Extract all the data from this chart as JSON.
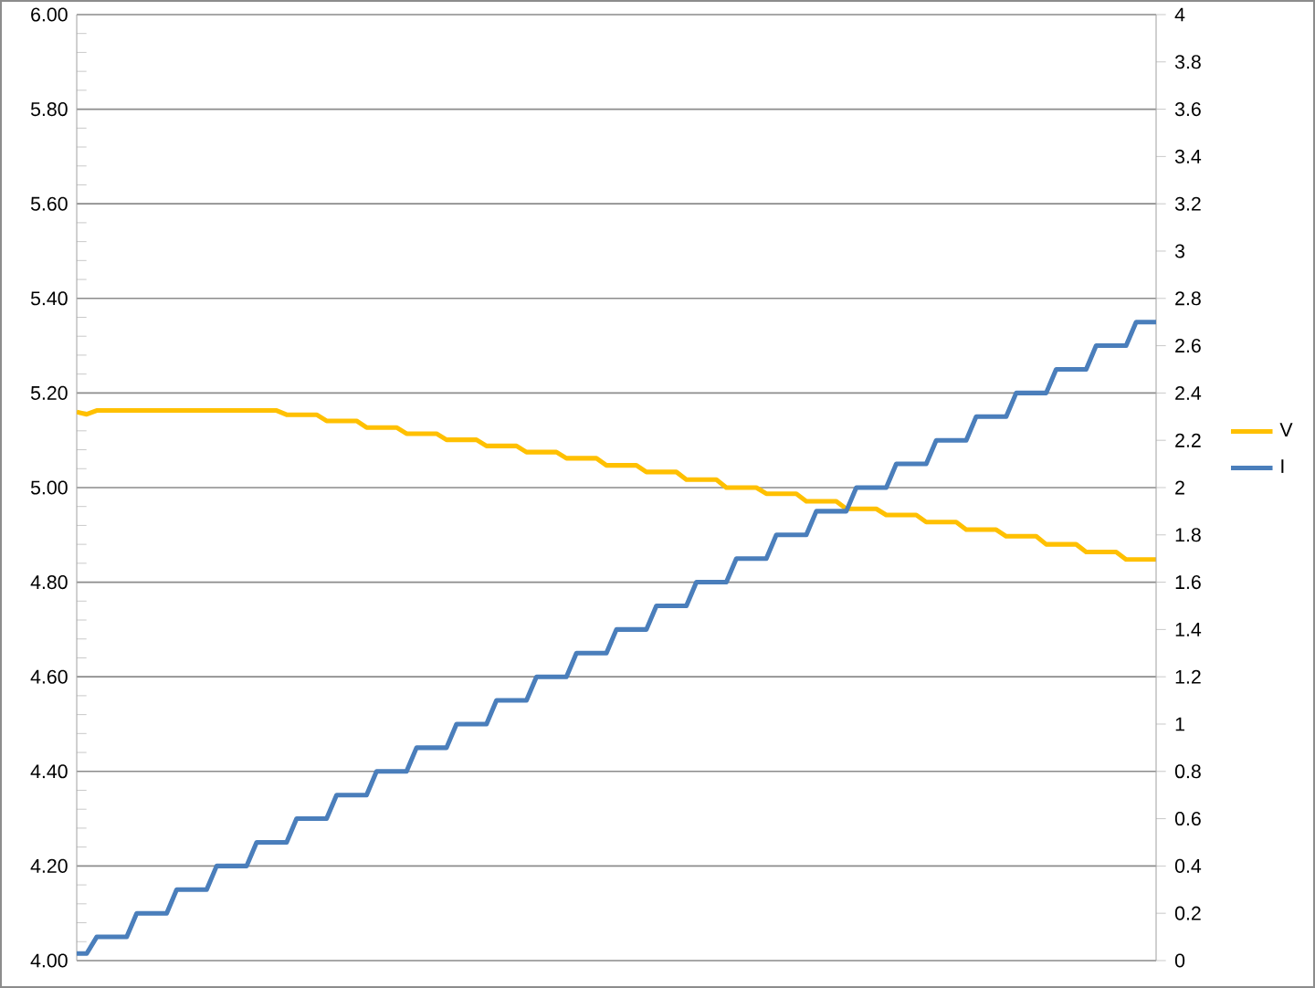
{
  "chart_data": {
    "type": "line",
    "categories": [
      null,
      null,
      null,
      null,
      null,
      null,
      null,
      null,
      null,
      null,
      null,
      null,
      null,
      null,
      null,
      null,
      null,
      null,
      null,
      null,
      null,
      null,
      null,
      null,
      null,
      null,
      null,
      null,
      null,
      null,
      null,
      null,
      null,
      null,
      null,
      null,
      null,
      null,
      null,
      null,
      null,
      null,
      null,
      null,
      null,
      null,
      null,
      null,
      null,
      null,
      null,
      null,
      null,
      null,
      null,
      null,
      null,
      null,
      null,
      null,
      null,
      null,
      null,
      null,
      null,
      null,
      null,
      null,
      null,
      null,
      null,
      null,
      null,
      null,
      null,
      null,
      null,
      null,
      null,
      null,
      null,
      null,
      null,
      null,
      null,
      null,
      null,
      null,
      null,
      null,
      null,
      null,
      null,
      null,
      null,
      null,
      null,
      null,
      null,
      null,
      null,
      null,
      null,
      null,
      null,
      null,
      null,
      null,
      null
    ],
    "series": [
      {
        "name": "V",
        "color": "#ffc000",
        "axis": "y",
        "values": [
          5.16,
          5.155,
          5.163,
          5.163,
          5.163,
          5.163,
          5.163,
          5.163,
          5.163,
          5.163,
          5.163,
          5.163,
          5.163,
          5.163,
          5.163,
          5.163,
          5.163,
          5.163,
          5.163,
          5.163,
          5.163,
          5.154,
          5.154,
          5.154,
          5.154,
          5.141,
          5.141,
          5.141,
          5.141,
          5.127,
          5.127,
          5.127,
          5.127,
          5.114,
          5.114,
          5.114,
          5.114,
          5.101,
          5.101,
          5.101,
          5.101,
          5.088,
          5.088,
          5.088,
          5.088,
          5.075,
          5.075,
          5.075,
          5.075,
          5.062,
          5.062,
          5.062,
          5.062,
          5.047,
          5.047,
          5.047,
          5.047,
          5.033,
          5.033,
          5.033,
          5.033,
          5.017,
          5.017,
          5.017,
          5.017,
          5.0,
          5.0,
          5.0,
          5.0,
          4.987,
          4.987,
          4.987,
          4.987,
          4.971,
          4.971,
          4.971,
          4.971,
          4.955,
          4.955,
          4.955,
          4.955,
          4.942,
          4.942,
          4.942,
          4.942,
          4.927,
          4.927,
          4.927,
          4.927,
          4.911,
          4.911,
          4.911,
          4.911,
          4.897,
          4.897,
          4.897,
          4.897,
          4.88,
          4.88,
          4.88,
          4.88,
          4.864,
          4.864,
          4.864,
          4.864,
          4.848,
          4.848,
          4.848,
          4.848
        ]
      },
      {
        "name": "I",
        "color": "#4a7ebb",
        "axis": "y2",
        "values": [
          0.03,
          0.03,
          0.1,
          0.1,
          0.1,
          0.1,
          0.2,
          0.2,
          0.2,
          0.2,
          0.3,
          0.3,
          0.3,
          0.3,
          0.4,
          0.4,
          0.4,
          0.4,
          0.5,
          0.5,
          0.5,
          0.5,
          0.6,
          0.6,
          0.6,
          0.6,
          0.7,
          0.7,
          0.7,
          0.7,
          0.8,
          0.8,
          0.8,
          0.8,
          0.9,
          0.9,
          0.9,
          0.9,
          1.0,
          1.0,
          1.0,
          1.0,
          1.1,
          1.1,
          1.1,
          1.1,
          1.2,
          1.2,
          1.2,
          1.2,
          1.3,
          1.3,
          1.3,
          1.3,
          1.4,
          1.4,
          1.4,
          1.4,
          1.5,
          1.5,
          1.5,
          1.5,
          1.6,
          1.6,
          1.6,
          1.6,
          1.7,
          1.7,
          1.7,
          1.7,
          1.8,
          1.8,
          1.8,
          1.8,
          1.9,
          1.9,
          1.9,
          1.9,
          2.0,
          2.0,
          2.0,
          2.0,
          2.1,
          2.1,
          2.1,
          2.1,
          2.2,
          2.2,
          2.2,
          2.2,
          2.3,
          2.3,
          2.3,
          2.3,
          2.4,
          2.4,
          2.4,
          2.4,
          2.5,
          2.5,
          2.5,
          2.5,
          2.6,
          2.6,
          2.6,
          2.6,
          2.7,
          2.7,
          2.7
        ]
      }
    ],
    "ylim": [
      4,
      6
    ],
    "yticks": [
      {
        "value": 4,
        "label": "4.00"
      },
      {
        "value": 4.2,
        "label": "4.20"
      },
      {
        "value": 4.4,
        "label": "4.40"
      },
      {
        "value": 4.6,
        "label": "4.60"
      },
      {
        "value": 4.8,
        "label": "4.80"
      },
      {
        "value": 5,
        "label": "5.00"
      },
      {
        "value": 5.2,
        "label": "5.20"
      },
      {
        "value": 5.4,
        "label": "5.40"
      },
      {
        "value": 5.6,
        "label": "5.60"
      },
      {
        "value": 5.8,
        "label": "5.80"
      },
      {
        "value": 6,
        "label": "6.00"
      }
    ],
    "y2lim": [
      0,
      4
    ],
    "y2ticks": [
      0,
      0.2,
      0.4,
      0.6,
      0.8,
      1,
      1.2,
      1.4,
      1.6,
      1.8,
      2,
      2.2,
      2.4,
      2.6,
      2.8,
      3,
      3.2,
      3.4,
      3.6,
      3.8,
      4
    ],
    "grid": "y",
    "legend": "right",
    "marker": "none",
    "line_style": "solid"
  }
}
